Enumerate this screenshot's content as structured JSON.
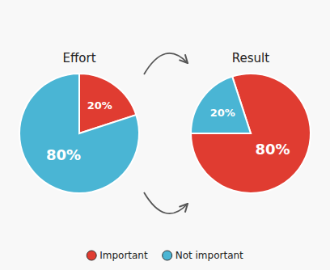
{
  "chart_data": [
    {
      "type": "pie",
      "title": "Effort",
      "categories": [
        "Important",
        "Not important"
      ],
      "values": [
        20,
        80
      ],
      "value_labels": [
        "20%",
        "80%"
      ],
      "colors": [
        "#e03c31",
        "#4ab5d4"
      ],
      "data_labels": true,
      "legend": "bottom"
    },
    {
      "type": "pie",
      "title": "Result",
      "categories": [
        "Important",
        "Not important"
      ],
      "values": [
        80,
        20
      ],
      "value_labels": [
        "80%",
        "20%"
      ],
      "colors": [
        "#e03c31",
        "#4ab5d4"
      ],
      "data_labels": true
    }
  ]
}
